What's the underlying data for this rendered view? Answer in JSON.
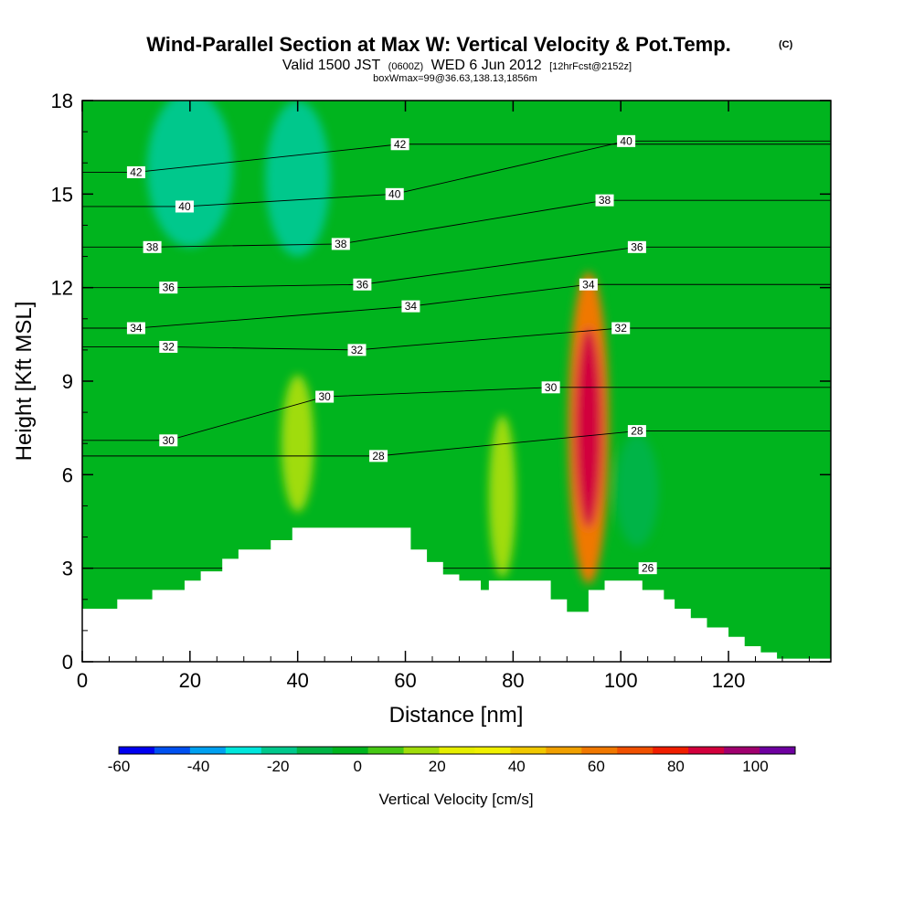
{
  "chart_data": {
    "type": "heatmap",
    "title": "Wind-Parallel Section at Max W: Vertical Velocity & Pot.Temp.",
    "title_mark": "(C)",
    "subtitle": {
      "valid": "Valid 1500 JST",
      "utc": "(0600Z)",
      "date": "WED 6 Jun 2012",
      "fcst": "[12hrFcst@2152z]"
    },
    "subtitle2": "boxWmax=99@36.63,138.13,1856m",
    "xlabel": "Distance [nm]",
    "ylabel": "Height [Kft MSL]",
    "xlim": [
      0,
      139
    ],
    "ylim": [
      0,
      18
    ],
    "xticks": [
      0,
      20,
      40,
      60,
      80,
      100,
      120
    ],
    "yticks": [
      0,
      3,
      6,
      9,
      12,
      15,
      18
    ],
    "colorbar": {
      "title": "Vertical Velocity [cm/s]",
      "min": -60,
      "max": 110,
      "step": 10,
      "tick_values": [
        -60,
        -40,
        -20,
        0,
        20,
        40,
        60,
        80,
        100
      ],
      "colors": [
        "#0000f0",
        "#0050f0",
        "#00a0f0",
        "#00e6dc",
        "#00c88c",
        "#00b446",
        "#00b41e",
        "#46c814",
        "#a0dc0a",
        "#e6ee00",
        "#f0f000",
        "#f0c800",
        "#f0a000",
        "#f07800",
        "#f05000",
        "#f01e00",
        "#d2003c",
        "#a0006e",
        "#6e00a0"
      ]
    },
    "terrain_kft": [
      [
        0,
        1.7
      ],
      [
        6.5,
        2.0
      ],
      [
        13,
        2.3
      ],
      [
        19,
        2.6
      ],
      [
        22,
        2.9
      ],
      [
        26,
        3.3
      ],
      [
        29,
        3.6
      ],
      [
        35,
        3.9
      ],
      [
        39,
        4.3
      ],
      [
        61,
        3.6
      ],
      [
        64,
        3.2
      ],
      [
        67,
        2.8
      ],
      [
        70,
        2.6
      ],
      [
        74,
        2.3
      ],
      [
        75.5,
        2.6
      ],
      [
        87,
        2.0
      ],
      [
        90,
        1.6
      ],
      [
        94,
        2.3
      ],
      [
        97,
        2.6
      ],
      [
        104,
        2.3
      ],
      [
        108,
        2.0
      ],
      [
        110,
        1.7
      ],
      [
        113,
        1.4
      ],
      [
        116,
        1.1
      ],
      [
        120,
        0.8
      ],
      [
        123,
        0.5
      ],
      [
        126,
        0.3
      ],
      [
        129,
        0.1
      ],
      [
        139,
        0
      ]
    ],
    "blobs": [
      {
        "x": 94,
        "y": 7.5,
        "rx": 2.5,
        "ry": 3.2,
        "value": 100
      },
      {
        "x": 94,
        "y": 7.5,
        "rx": 3.8,
        "ry": 5.0,
        "value": 70
      },
      {
        "x": 40,
        "y": 7.0,
        "rx": 3.0,
        "ry": 2.2,
        "value": 25
      },
      {
        "x": 78,
        "y": 5.3,
        "rx": 2.5,
        "ry": 2.6,
        "value": 25
      },
      {
        "x": 20,
        "y": 15.8,
        "rx": 8.0,
        "ry": 2.5,
        "value": -15
      },
      {
        "x": 40,
        "y": 15.5,
        "rx": 6.0,
        "ry": 2.5,
        "value": -15
      },
      {
        "x": 103,
        "y": 5.5,
        "rx": 4.0,
        "ry": 1.8,
        "value": -10
      }
    ],
    "theta_contours": [
      {
        "value": "26",
        "label_at": [
          105,
          3.0
        ]
      },
      {
        "value": "28",
        "label_at": [
          55,
          6.6
        ],
        "label_at2": [
          103,
          7.4
        ]
      },
      {
        "value": "30",
        "label_at": [
          16,
          7.1
        ],
        "label_at2": [
          45,
          8.5
        ],
        "label_at3": [
          87,
          8.8
        ]
      },
      {
        "value": "32",
        "label_at": [
          16,
          10.1
        ],
        "label_at2": [
          51,
          10.0
        ],
        "label_at3": [
          100,
          10.7
        ]
      },
      {
        "value": "34",
        "label_at": [
          10,
          10.7
        ],
        "label_at2": [
          61,
          11.4
        ],
        "label_at3": [
          94,
          12.1
        ]
      },
      {
        "value": "36",
        "label_at": [
          16,
          12.0
        ],
        "label_at2": [
          52,
          12.1
        ],
        "label_at3": [
          103,
          13.3
        ]
      },
      {
        "value": "38",
        "label_at": [
          13,
          13.3
        ],
        "label_at2": [
          48,
          13.4
        ],
        "label_at3": [
          97,
          14.8
        ]
      },
      {
        "value": "40",
        "label_at": [
          19,
          14.6
        ],
        "label_at2": [
          58,
          15.0
        ],
        "label_at3": [
          101,
          16.7
        ]
      },
      {
        "value": "42",
        "label_at": [
          10,
          15.7
        ],
        "label_at2": [
          59,
          16.6
        ]
      }
    ]
  }
}
